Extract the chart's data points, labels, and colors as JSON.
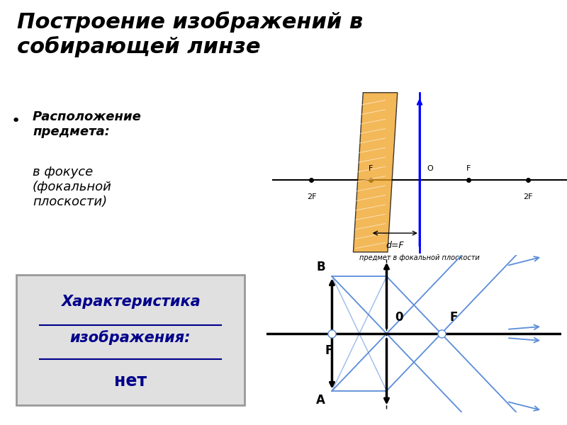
{
  "title_line1": "Построение изображений в",
  "title_line2": "собирающей линзе",
  "title_bg": "#d0d0d0",
  "title_fontsize": 22,
  "bullet_bold": "Расположение\nпредмета:",
  "bullet_normal": "в фокусе\n(фокальной\nплоскости)",
  "char_line1": "Характеристика",
  "char_line2": "изображения:",
  "char_line3": "нет",
  "char_box_bg": "#e0e0e0",
  "char_color": "#00008B",
  "bg_color": "#ffffff",
  "ray_color": "#5b8dd9",
  "photo_bg": "#c8e8c0"
}
